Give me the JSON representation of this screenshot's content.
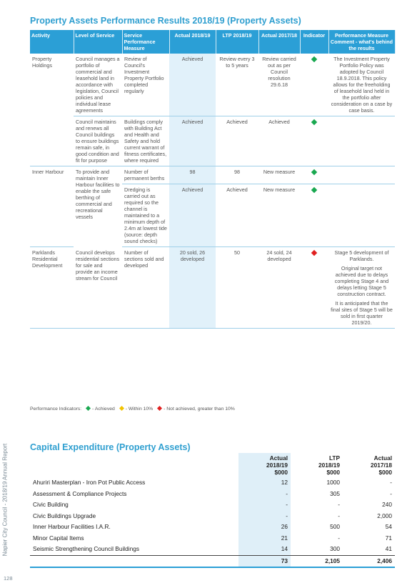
{
  "side_text": "Napier City Council - 2018/19 Annual Report",
  "page_number": "128",
  "performance": {
    "title": "Property Assets Performance Results 2018/19 (Property Assets)",
    "headers": {
      "activity": "Activity",
      "level": "Level of Service",
      "measure": "Service Performance Measure",
      "actual1819": "Actual 2018/19",
      "ltp": "LTP 2018/19",
      "actual1718": "Actual 2017/18",
      "indicator": "Indicator",
      "comment": "Performance Measure Comment - what's behind the results"
    },
    "rows": {
      "r1": {
        "activity": "Property Holdings",
        "level": "Council manages a portfolio of commercial and leasehold land in accordance with legislation, Council policies and individual lease agreements",
        "measure": "Review of Council's Investment Property Portfolio completed regularly",
        "actual1819": "Achieved",
        "ltp": "Review every 3 to 5 years",
        "actual1718": "Review carried out as per Council resolution 29.6.18",
        "indicator": "achieved",
        "comment": "The Investment Property Portfolio Policy was adopted by Council 18.9.2018. This policy allows for the freeholding of leasehold land held in the portfolio after consideration on a case by case basis."
      },
      "r2": {
        "level": "Council maintains and renews all Council buildings to ensure buildings remain safe, in good condition and fit for purpose",
        "measure": "Buildings comply with Building Act and Health and Safety and hold current warrant of fitness certificates, where required",
        "actual1819": "Achieved",
        "ltp": "Achieved",
        "actual1718": "Achieved",
        "indicator": "achieved"
      },
      "r3": {
        "activity": "Inner Harbour",
        "level": "To provide and maintain Inner Harbour facilities to enable the safe berthing of commercial and recreational vessels",
        "measure": "Number of permanent berths",
        "actual1819": "98",
        "ltp": "98",
        "actual1718": "New measure",
        "indicator": "achieved"
      },
      "r4": {
        "measure": "Dredging is carried out as required so the channel is maintained to a minimum depth of 2.4m at lowest tide (source: depth sound checks)",
        "actual1819": "Achieved",
        "ltp": "Achieved",
        "actual1718": "New measure",
        "indicator": "achieved"
      },
      "r5": {
        "activity": "Parklands Residential Development",
        "level": "Council develops residential sections for sale and provide an income stream for Council",
        "measure": "Number of sections sold and developed",
        "actual1819": "20 sold, 26 developed",
        "ltp": "50",
        "actual1718": "24 sold, 24 developed",
        "indicator": "not_achieved",
        "comment1": "Stage 5 development of Parklands.",
        "comment2": "Original target not achieved due to delays completing Stage 4 and delays letting Stage 5 construction contract.",
        "comment3": "It is anticipated that the final sites of Stage 5 will be sold in first quarter 2019/20."
      }
    },
    "legend": {
      "prefix": "Performance Indicators:",
      "achieved": "- Achieved",
      "within": "- Within 10%",
      "not_achieved": "- Not achieved, greater than 10%"
    },
    "colors": {
      "achieved": "#19a850",
      "within": "#f2c300",
      "not_achieved": "#e02020",
      "header": "#2b9fd6"
    }
  },
  "capital": {
    "title": "Capital Expenditure (Property Assets)",
    "headers": {
      "c1": {
        "a": "Actual",
        "b": "2018/19",
        "c": "$000"
      },
      "c2": {
        "a": "LTP",
        "b": "2018/19",
        "c": "$000"
      },
      "c3": {
        "a": "Actual",
        "b": "2017/18",
        "c": "$000"
      }
    },
    "rows": [
      {
        "label": "Ahuriri Masterplan - Iron Pot Public Access",
        "v1": "12",
        "v2": "1000",
        "v3": "-"
      },
      {
        "label": "Assessment & Compliance Projects",
        "v1": "-",
        "v2": "305",
        "v3": "-"
      },
      {
        "label": "Civic Building",
        "v1": "-",
        "v2": "-",
        "v3": "240"
      },
      {
        "label": "Civic Buildings Upgrade",
        "v1": "-",
        "v2": "-",
        "v3": "2,000"
      },
      {
        "label": "Inner Harbour Facilities I.A.R.",
        "v1": "26",
        "v2": "500",
        "v3": "54"
      },
      {
        "label": "Minor Capital Items",
        "v1": "21",
        "v2": "-",
        "v3": "71"
      },
      {
        "label": "Seismic Strengthening Council Buildings",
        "v1": "14",
        "v2": "300",
        "v3": "41"
      }
    ],
    "total": {
      "v1": "73",
      "v2": "2,105",
      "v3": "2,406"
    }
  }
}
